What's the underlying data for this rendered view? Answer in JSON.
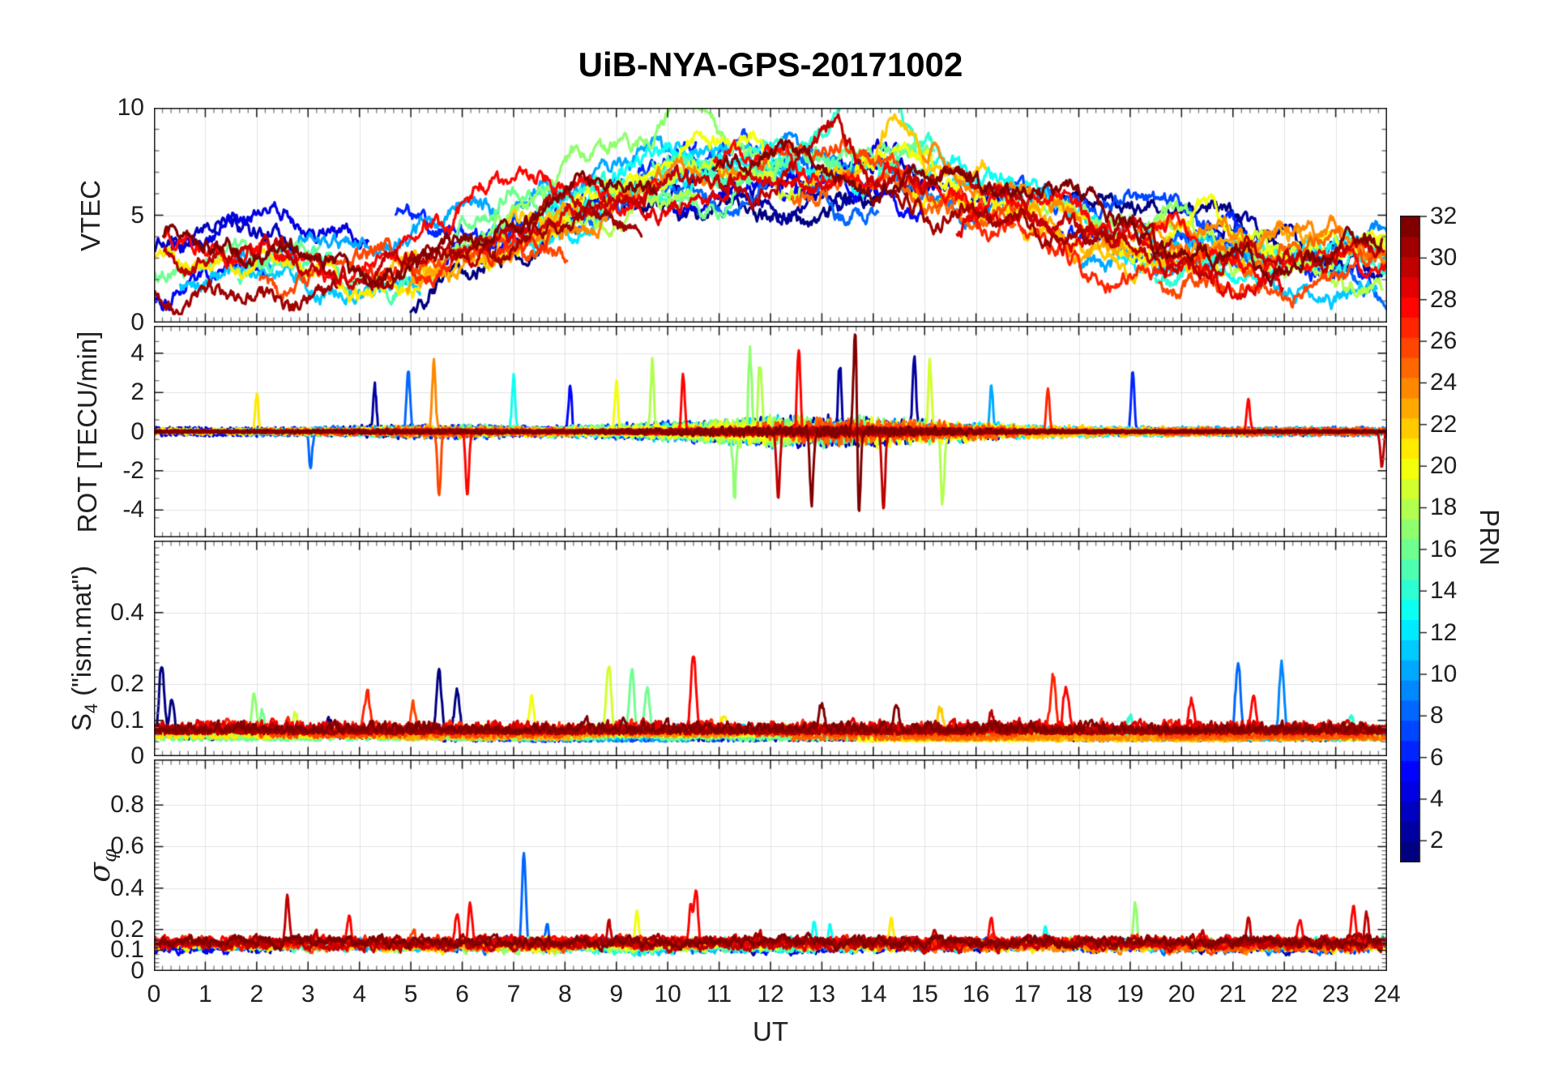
{
  "title": "UiB-NYA-GPS-20171002",
  "chart_data": {
    "type": "line",
    "title": "UiB-NYA-GPS-20171002",
    "xlabel": "UT",
    "x_range": [
      0,
      24
    ],
    "x_ticks": [
      0,
      1,
      2,
      3,
      4,
      5,
      6,
      7,
      8,
      9,
      10,
      11,
      12,
      13,
      14,
      15,
      16,
      17,
      18,
      19,
      20,
      21,
      22,
      23,
      24
    ],
    "x_minor_step": 0.166667,
    "grid": true,
    "legend": "none",
    "colorbar": {
      "label": "PRN",
      "range": [
        1,
        32
      ],
      "ticks": [
        2,
        4,
        6,
        8,
        10,
        12,
        14,
        16,
        18,
        20,
        22,
        24,
        26,
        28,
        30,
        32
      ],
      "colormap": "jet",
      "levels": 32
    },
    "prn_series": {
      "count": 32,
      "note": "one trace per GPS satellite PRN 1-32, line color mapped to PRN via jet colormap"
    },
    "panels": [
      {
        "id": "vtec",
        "ylabel": {
          "pre": "VTEC"
        },
        "ylim": [
          0,
          10
        ],
        "yticks": [
          0,
          5,
          10
        ],
        "y_minor_step": 1,
        "envelope": {
          "base": 2.55,
          "amp": 4.55,
          "center": 12.8,
          "width": 5.6
        },
        "hourly_mean": [
          2.8,
          3.0,
          3.1,
          3.3,
          3.7,
          4.3,
          4.9,
          5.6,
          6.2,
          6.6,
          6.9,
          7.1,
          7.3,
          7.4,
          7.2,
          6.9,
          6.2,
          5.4,
          4.9,
          4.4,
          4.0,
          3.6,
          3.3,
          3.0,
          2.9
        ],
        "hourly_min": [
          1.5,
          1.6,
          1.8,
          2.0,
          2.2,
          2.6,
          3.0,
          3.6,
          4.2,
          4.6,
          4.8,
          5.0,
          5.2,
          5.2,
          5.0,
          4.6,
          4.0,
          3.4,
          3.0,
          2.6,
          2.3,
          2.0,
          1.8,
          1.6,
          1.5
        ],
        "hourly_max": [
          4.6,
          4.8,
          5.2,
          5.6,
          6.2,
          6.9,
          7.5,
          8.1,
          8.7,
          9.3,
          9.9,
          9.0,
          9.4,
          9.8,
          9.5,
          8.7,
          7.9,
          7.1,
          6.5,
          6.9,
          6.4,
          5.6,
          4.9,
          4.5,
          4.3
        ],
        "highlights": [
          {
            "t": 10.45,
            "amp": 4.0,
            "w": 0.8,
            "prn": 17
          },
          {
            "t": 8.3,
            "amp": 2.4,
            "w": 0.9,
            "prn": 17
          },
          {
            "t": 13.9,
            "amp": 3.2,
            "w": 0.6,
            "prn": 14
          },
          {
            "t": 12.4,
            "amp": 2.2,
            "w": 0.5,
            "prn": 8
          },
          {
            "t": 13.1,
            "amp": 2.0,
            "w": 0.6,
            "prn": 30
          },
          {
            "t": 14.5,
            "amp": 2.6,
            "w": 0.5,
            "prn": 22
          },
          {
            "t": 20.3,
            "amp": 2.2,
            "w": 0.8,
            "prn": 20
          },
          {
            "t": 6.6,
            "amp": 1.8,
            "w": 0.7,
            "prn": 28
          }
        ]
      },
      {
        "id": "rot",
        "ylabel": {
          "pre": "ROT [TECU/min]"
        },
        "ylim": [
          -5.4,
          5.4
        ],
        "yticks": [
          -4,
          -2,
          0,
          2,
          4
        ],
        "y_minor_step": 1,
        "hourly_noise_std": [
          0.3,
          0.32,
          0.38,
          0.4,
          0.5,
          0.65,
          0.6,
          0.62,
          0.7,
          0.9,
          0.95,
          1.1,
          1.3,
          1.5,
          1.35,
          1.1,
          0.7,
          0.5,
          0.42,
          0.38,
          0.32,
          0.3,
          0.3,
          0.3,
          0.3
        ],
        "spikes": [
          {
            "t": 2.0,
            "v": 1.9,
            "prn": 21
          },
          {
            "t": 3.05,
            "v": -1.8,
            "prn": 8
          },
          {
            "t": 4.3,
            "v": 2.2,
            "prn": 2
          },
          {
            "t": 4.95,
            "v": 3.3,
            "prn": 8
          },
          {
            "t": 5.45,
            "v": 3.6,
            "prn": 24
          },
          {
            "t": 5.55,
            "v": -3.2,
            "prn": 26
          },
          {
            "t": 6.1,
            "v": -3.3,
            "prn": 28
          },
          {
            "t": 7.0,
            "v": 2.8,
            "prn": 13
          },
          {
            "t": 8.1,
            "v": 2.3,
            "prn": 5
          },
          {
            "t": 9.0,
            "v": 2.6,
            "prn": 20
          },
          {
            "t": 9.7,
            "v": 3.5,
            "prn": 18
          },
          {
            "t": 10.3,
            "v": 2.9,
            "prn": 28
          },
          {
            "t": 11.3,
            "v": -3.4,
            "prn": 17
          },
          {
            "t": 11.6,
            "v": 3.8,
            "prn": 17
          },
          {
            "t": 11.8,
            "v": 3.9,
            "prn": 18
          },
          {
            "t": 12.15,
            "v": -3.3,
            "prn": 30
          },
          {
            "t": 12.55,
            "v": 4.3,
            "prn": 28
          },
          {
            "t": 12.8,
            "v": -3.6,
            "prn": 32
          },
          {
            "t": 13.35,
            "v": 3.4,
            "prn": 2
          },
          {
            "t": 13.65,
            "v": 5.4,
            "prn": 32
          },
          {
            "t": 13.72,
            "v": -4.4,
            "prn": 32
          },
          {
            "t": 14.2,
            "v": -3.9,
            "prn": 30
          },
          {
            "t": 14.8,
            "v": 4.0,
            "prn": 2
          },
          {
            "t": 15.1,
            "v": 3.5,
            "prn": 19
          },
          {
            "t": 15.35,
            "v": -3.7,
            "prn": 18
          },
          {
            "t": 16.3,
            "v": 2.4,
            "prn": 10
          },
          {
            "t": 17.4,
            "v": 2.2,
            "prn": 27
          },
          {
            "t": 19.05,
            "v": 3.1,
            "prn": 6
          },
          {
            "t": 21.3,
            "v": 1.6,
            "prn": 28
          },
          {
            "t": 23.9,
            "v": -1.8,
            "prn": 30
          }
        ]
      },
      {
        "id": "s4",
        "ylabel": {
          "pre": "S",
          "sub": "4",
          "post": " (\"ism.mat\")"
        },
        "ylim": [
          0,
          0.6
        ],
        "yticks": [
          0,
          0.1,
          0.2,
          0.4
        ],
        "y_minor_step": 0.02,
        "baseline": 0.06,
        "spikes": [
          {
            "t": 0.15,
            "v": 0.27,
            "prn": 1
          },
          {
            "t": 0.35,
            "v": 0.18,
            "prn": 1
          },
          {
            "t": 1.95,
            "v": 0.19,
            "prn": 17
          },
          {
            "t": 2.1,
            "v": 0.14,
            "prn": 16
          },
          {
            "t": 2.75,
            "v": 0.12,
            "prn": 19
          },
          {
            "t": 3.4,
            "v": 0.12,
            "prn": 1
          },
          {
            "t": 4.15,
            "v": 0.17,
            "prn": 27
          },
          {
            "t": 5.05,
            "v": 0.14,
            "prn": 26
          },
          {
            "t": 5.55,
            "v": 0.23,
            "prn": 1
          },
          {
            "t": 5.9,
            "v": 0.2,
            "prn": 1
          },
          {
            "t": 7.35,
            "v": 0.17,
            "prn": 20
          },
          {
            "t": 8.85,
            "v": 0.26,
            "prn": 19
          },
          {
            "t": 9.3,
            "v": 0.26,
            "prn": 16
          },
          {
            "t": 9.6,
            "v": 0.21,
            "prn": 16
          },
          {
            "t": 10.5,
            "v": 0.28,
            "prn": 28
          },
          {
            "t": 11.1,
            "v": 0.12,
            "prn": 21
          },
          {
            "t": 13.0,
            "v": 0.14,
            "prn": 32
          },
          {
            "t": 14.45,
            "v": 0.14,
            "prn": 32
          },
          {
            "t": 15.3,
            "v": 0.15,
            "prn": 22
          },
          {
            "t": 16.3,
            "v": 0.12,
            "prn": 30
          },
          {
            "t": 17.5,
            "v": 0.22,
            "prn": 27
          },
          {
            "t": 17.75,
            "v": 0.19,
            "prn": 28
          },
          {
            "t": 19.0,
            "v": 0.12,
            "prn": 14
          },
          {
            "t": 20.2,
            "v": 0.15,
            "prn": 28
          },
          {
            "t": 21.1,
            "v": 0.27,
            "prn": 8
          },
          {
            "t": 21.4,
            "v": 0.17,
            "prn": 28
          },
          {
            "t": 21.95,
            "v": 0.27,
            "prn": 9
          },
          {
            "t": 23.3,
            "v": 0.12,
            "prn": 14
          }
        ]
      },
      {
        "id": "sigma-phi",
        "ylabel": {
          "pre": "σ",
          "sub": "φ",
          "italic": true
        },
        "ylim": [
          0,
          1.02
        ],
        "yticks": [
          0,
          0.1,
          0.2,
          0.4,
          0.6,
          0.8
        ],
        "y_minor_step": 0.02,
        "baseline": 0.13,
        "spikes": [
          {
            "t": 2.6,
            "v": 0.38,
            "prn": 30
          },
          {
            "t": 3.15,
            "v": 0.2,
            "prn": 30
          },
          {
            "t": 3.8,
            "v": 0.27,
            "prn": 28
          },
          {
            "t": 5.05,
            "v": 0.2,
            "prn": 26
          },
          {
            "t": 5.9,
            "v": 0.27,
            "prn": 28
          },
          {
            "t": 6.15,
            "v": 0.3,
            "prn": 28
          },
          {
            "t": 7.2,
            "v": 0.59,
            "prn": 8
          },
          {
            "t": 7.65,
            "v": 0.23,
            "prn": 8
          },
          {
            "t": 8.85,
            "v": 0.25,
            "prn": 30
          },
          {
            "t": 9.4,
            "v": 0.27,
            "prn": 20
          },
          {
            "t": 10.45,
            "v": 0.3,
            "prn": 28
          },
          {
            "t": 10.55,
            "v": 0.38,
            "prn": 28
          },
          {
            "t": 11.8,
            "v": 0.22,
            "prn": 30
          },
          {
            "t": 12.85,
            "v": 0.26,
            "prn": 13
          },
          {
            "t": 13.15,
            "v": 0.24,
            "prn": 13
          },
          {
            "t": 14.35,
            "v": 0.26,
            "prn": 21
          },
          {
            "t": 15.2,
            "v": 0.2,
            "prn": 30
          },
          {
            "t": 16.3,
            "v": 0.25,
            "prn": 28
          },
          {
            "t": 17.35,
            "v": 0.22,
            "prn": 13
          },
          {
            "t": 19.1,
            "v": 0.33,
            "prn": 17
          },
          {
            "t": 20.4,
            "v": 0.2,
            "prn": 30
          },
          {
            "t": 21.3,
            "v": 0.25,
            "prn": 30
          },
          {
            "t": 22.3,
            "v": 0.24,
            "prn": 28
          },
          {
            "t": 23.35,
            "v": 0.3,
            "prn": 28
          },
          {
            "t": 23.6,
            "v": 0.28,
            "prn": 30
          }
        ]
      }
    ]
  },
  "style": {
    "background": "#ffffff",
    "axis_color": "#1a1a1a",
    "grid_color": "#e3e3e3",
    "text_color": "#1f1f1f",
    "minor_tick_color": "#787878"
  }
}
